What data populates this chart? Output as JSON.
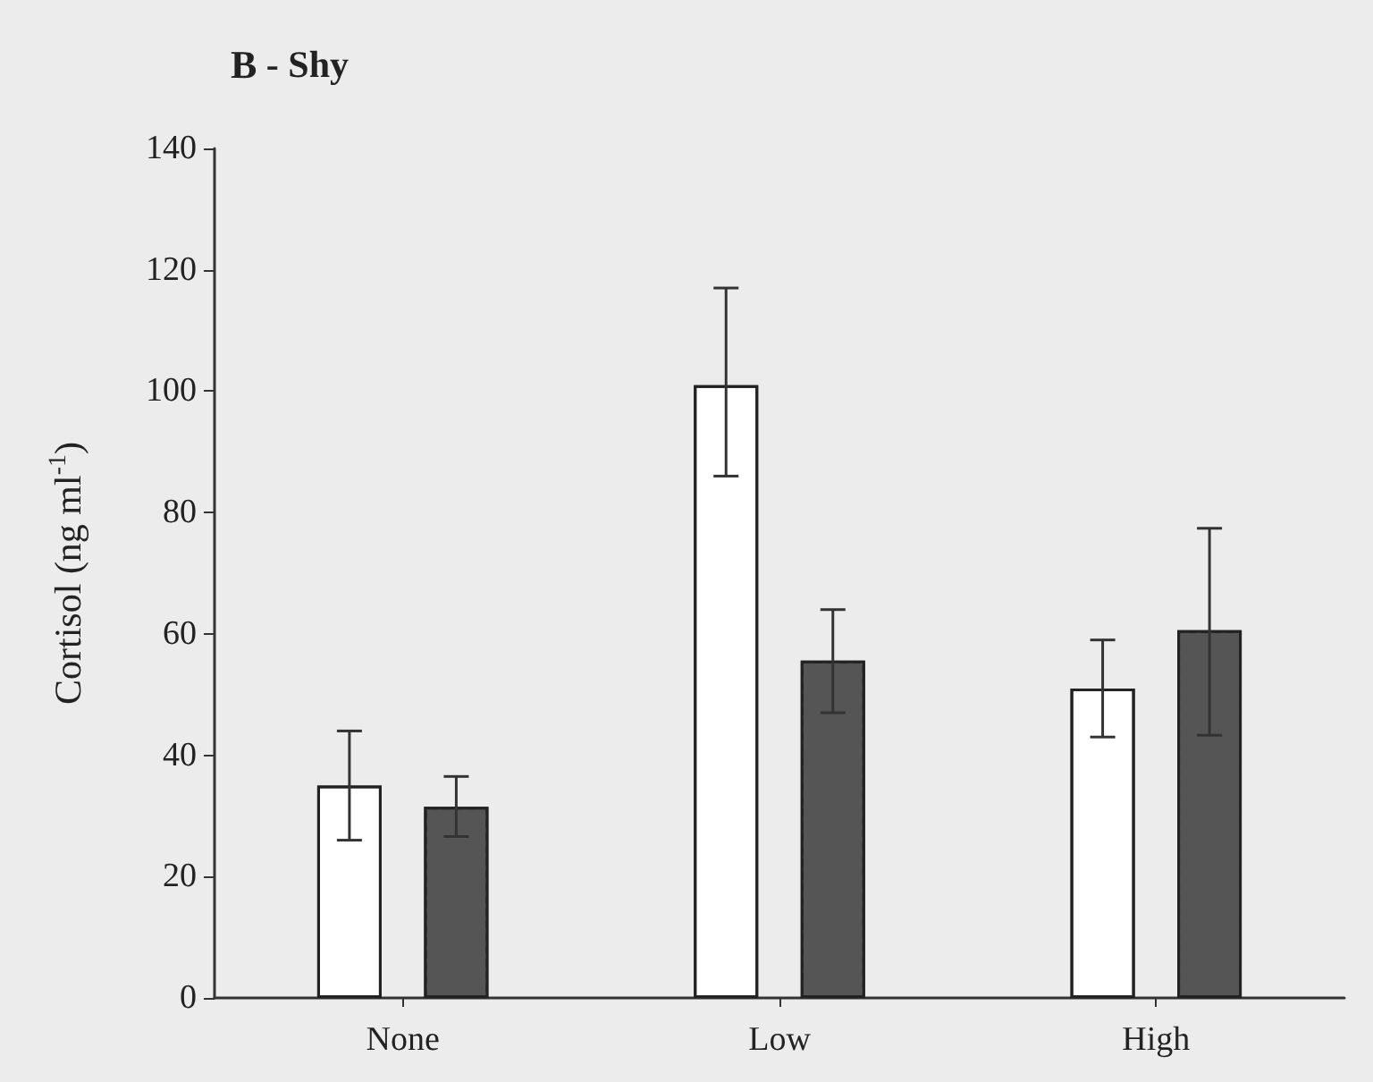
{
  "chart_data": {
    "type": "bar",
    "title": "B - Shy",
    "ylabel": "Cortisol (ng ml$^{-1}$)",
    "categories": [
      "None",
      "Low",
      "High"
    ],
    "series": [
      {
        "color": "#ffffff",
        "values": [
          35,
          101,
          51
        ],
        "errors": [
          [
            26,
            44
          ],
          [
            86,
            117
          ],
          [
            43,
            59
          ]
        ]
      },
      {
        "color": "#555555",
        "values": [
          31.5,
          55.6,
          60.6
        ],
        "errors": [
          [
            26.6,
            36.5
          ],
          [
            47,
            64
          ],
          [
            43.3,
            77.4
          ]
        ]
      }
    ],
    "ylim": [
      0,
      140
    ],
    "yticks": [
      0,
      20,
      40,
      60,
      80,
      100,
      120,
      140
    ],
    "grid": false
  }
}
